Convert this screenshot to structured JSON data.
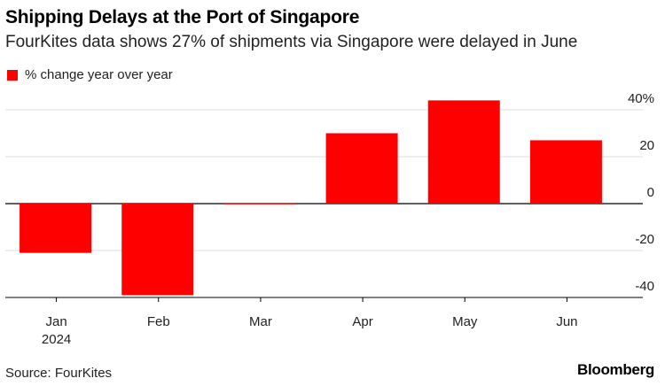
{
  "title": "Shipping Delays at the Port of Singapore",
  "subtitle": "FourKites data shows 27% of shipments via Singapore were delayed in June",
  "source": "Source: FourKites",
  "brand": "Bloomberg",
  "chart_data": {
    "type": "bar",
    "categories": [
      "Jan",
      "Feb",
      "Mar",
      "Apr",
      "May",
      "Jun"
    ],
    "x_sublabel": {
      "index": 0,
      "text": "2024"
    },
    "series": [
      {
        "name": "% change year over year",
        "values": [
          -21,
          -39,
          0,
          30,
          44,
          27
        ]
      }
    ],
    "y_ticks": [
      40,
      20,
      0,
      -20,
      -40
    ],
    "y_tick_labels": [
      "40%",
      "20",
      "0",
      "-20",
      "-40"
    ],
    "ylim": [
      -41,
      44
    ],
    "y_axis_position": "right",
    "grid": true,
    "legend_position": "top-left",
    "bar_color": "#ff0000"
  }
}
